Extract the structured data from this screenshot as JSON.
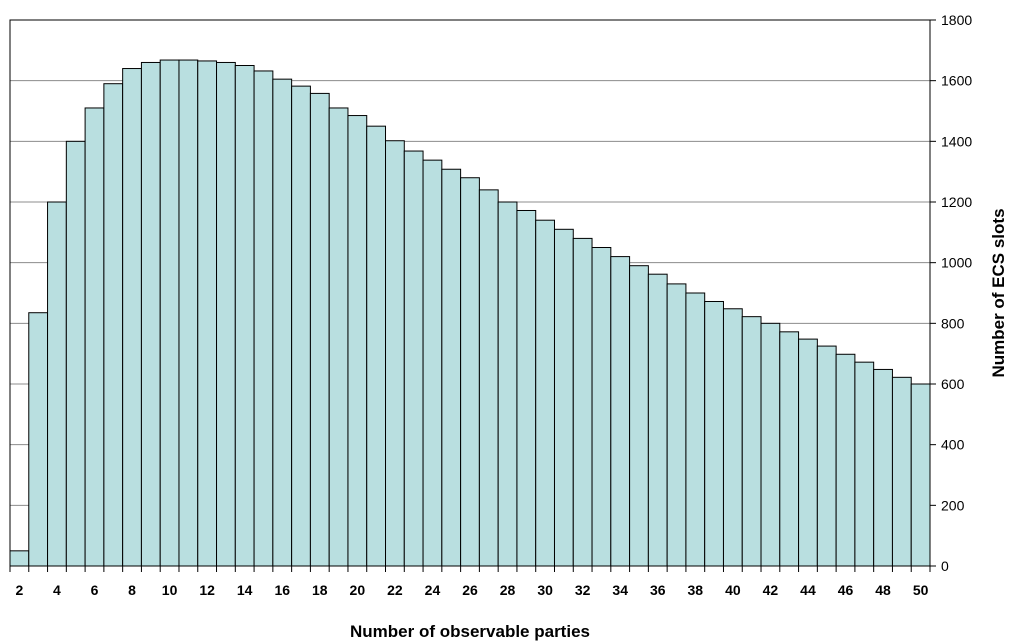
{
  "chart_data": {
    "type": "bar",
    "xlabel": "Number of observable parties",
    "ylabel": "Number of ECS slots",
    "ylim": [
      0,
      1800
    ],
    "yticks": [
      0,
      200,
      400,
      600,
      800,
      1000,
      1200,
      1400,
      1600,
      1800
    ],
    "y_axis_side": "right",
    "grid": "horizontal",
    "bar_color": "#b9dfe0",
    "bar_edge_color": "#000000",
    "x_tick_labels": [
      "2",
      "4",
      "6",
      "8",
      "10",
      "12",
      "14",
      "16",
      "18",
      "20",
      "22",
      "24",
      "26",
      "28",
      "30",
      "32",
      "34",
      "36",
      "38",
      "40",
      "42",
      "44",
      "46",
      "48",
      "50"
    ],
    "categories": [
      2,
      3,
      4,
      5,
      6,
      7,
      8,
      9,
      10,
      11,
      12,
      13,
      14,
      15,
      16,
      17,
      18,
      19,
      20,
      21,
      22,
      23,
      24,
      25,
      26,
      27,
      28,
      29,
      30,
      31,
      32,
      33,
      34,
      35,
      36,
      37,
      38,
      39,
      40,
      41,
      42,
      43,
      44,
      45,
      46,
      47,
      48,
      49,
      50
    ],
    "values": [
      50,
      835,
      1200,
      1400,
      1510,
      1590,
      1640,
      1660,
      1668,
      1668,
      1665,
      1660,
      1650,
      1632,
      1605,
      1582,
      1558,
      1510,
      1485,
      1450,
      1402,
      1368,
      1338,
      1308,
      1280,
      1240,
      1200,
      1172,
      1140,
      1110,
      1080,
      1050,
      1020,
      990,
      962,
      930,
      900,
      872,
      848,
      822,
      800,
      772,
      748,
      725,
      698,
      672,
      648,
      622,
      600
    ]
  }
}
